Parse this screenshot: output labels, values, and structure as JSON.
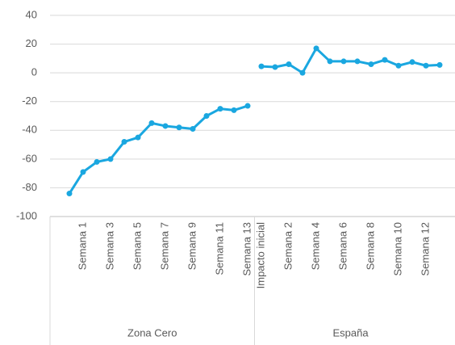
{
  "chart_data": {
    "type": "line",
    "color": "#1aa7e0",
    "grid": true,
    "ylim": [
      -100,
      40
    ],
    "yticks": [
      -100,
      -80,
      -60,
      -40,
      -20,
      0,
      20,
      40
    ],
    "groups": [
      {
        "name": "Zona Cero",
        "categories": [
          null,
          "Semana 1",
          null,
          "Semana 3",
          null,
          "Semana 5",
          null,
          "Semana 7",
          null,
          "Semana 9",
          null,
          "Semana 11",
          null,
          "Semana 13"
        ],
        "values": [
          -84,
          -69,
          -62,
          -60,
          -48,
          -45,
          -35,
          -37,
          -38,
          -39,
          -30,
          -25,
          -26,
          -23
        ]
      },
      {
        "name": "España",
        "categories": [
          "Impacto inicial",
          null,
          "Semana 2",
          null,
          "Semana 4",
          null,
          "Semana 6",
          null,
          "Semana 8",
          null,
          "Semana 10",
          null,
          "Semana 12",
          null
        ],
        "values": [
          4.5,
          4,
          6,
          0,
          17,
          8,
          8,
          8,
          6,
          9,
          5,
          7.5,
          5,
          5.5
        ]
      }
    ]
  }
}
